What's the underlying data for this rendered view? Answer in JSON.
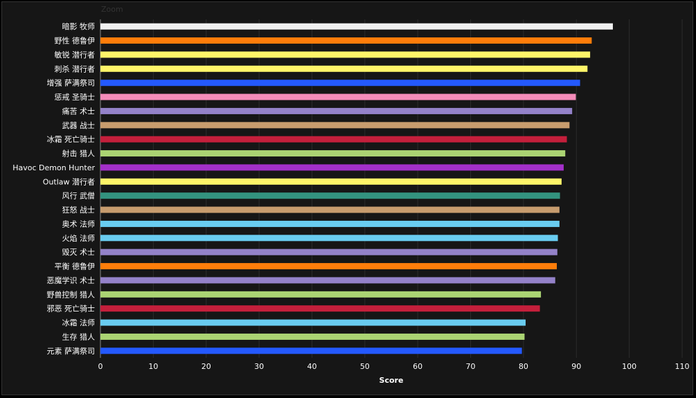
{
  "zoom_label": "Zoom",
  "chart_data": {
    "type": "bar",
    "orientation": "horizontal",
    "title": "",
    "xlabel": "Score",
    "ylabel": "",
    "xlim": [
      0,
      110
    ],
    "x_ticks": [
      0,
      10,
      20,
      30,
      40,
      50,
      60,
      70,
      80,
      90,
      100,
      110
    ],
    "grid": true,
    "categories": [
      "暗影 牧师",
      "野性 德鲁伊",
      "敏锐 潜行者",
      "刺杀 潜行者",
      "增强 萨满祭司",
      "惩戒 圣骑士",
      "痛苦 术士",
      "武器 战士",
      "冰霜 死亡骑士",
      "射击 猎人",
      "Havoc Demon Hunter",
      "Outlaw 潜行者",
      "风行 武僧",
      "狂怒 战士",
      "奥术 法师",
      "火焰 法师",
      "毁灭 术士",
      "平衡 德鲁伊",
      "恶魔学识 术士",
      "野兽控制 猎人",
      "邪恶 死亡骑士",
      "冰霜 法师",
      "生存 猎人",
      "元素 萨满祭司"
    ],
    "values": [
      96.9,
      92.9,
      92.6,
      92.1,
      90.7,
      89.9,
      89.2,
      88.7,
      88.2,
      87.9,
      87.6,
      87.2,
      86.9,
      86.8,
      86.8,
      86.5,
      86.4,
      86.3,
      86.0,
      83.3,
      83.1,
      80.4,
      80.2,
      79.7
    ],
    "colors": [
      "#f0f0f0",
      "#ff7d0a",
      "#fff569",
      "#fff569",
      "#2459ff",
      "#f58cba",
      "#9482c9",
      "#c79c6e",
      "#c41f3b",
      "#abd473",
      "#a330c9",
      "#fff569",
      "#33937f",
      "#c79c6e",
      "#69ccf0",
      "#69ccf0",
      "#9482c9",
      "#ff7d0a",
      "#9482c9",
      "#abd473",
      "#c41f3b",
      "#69ccf0",
      "#abd473",
      "#2459ff"
    ]
  }
}
